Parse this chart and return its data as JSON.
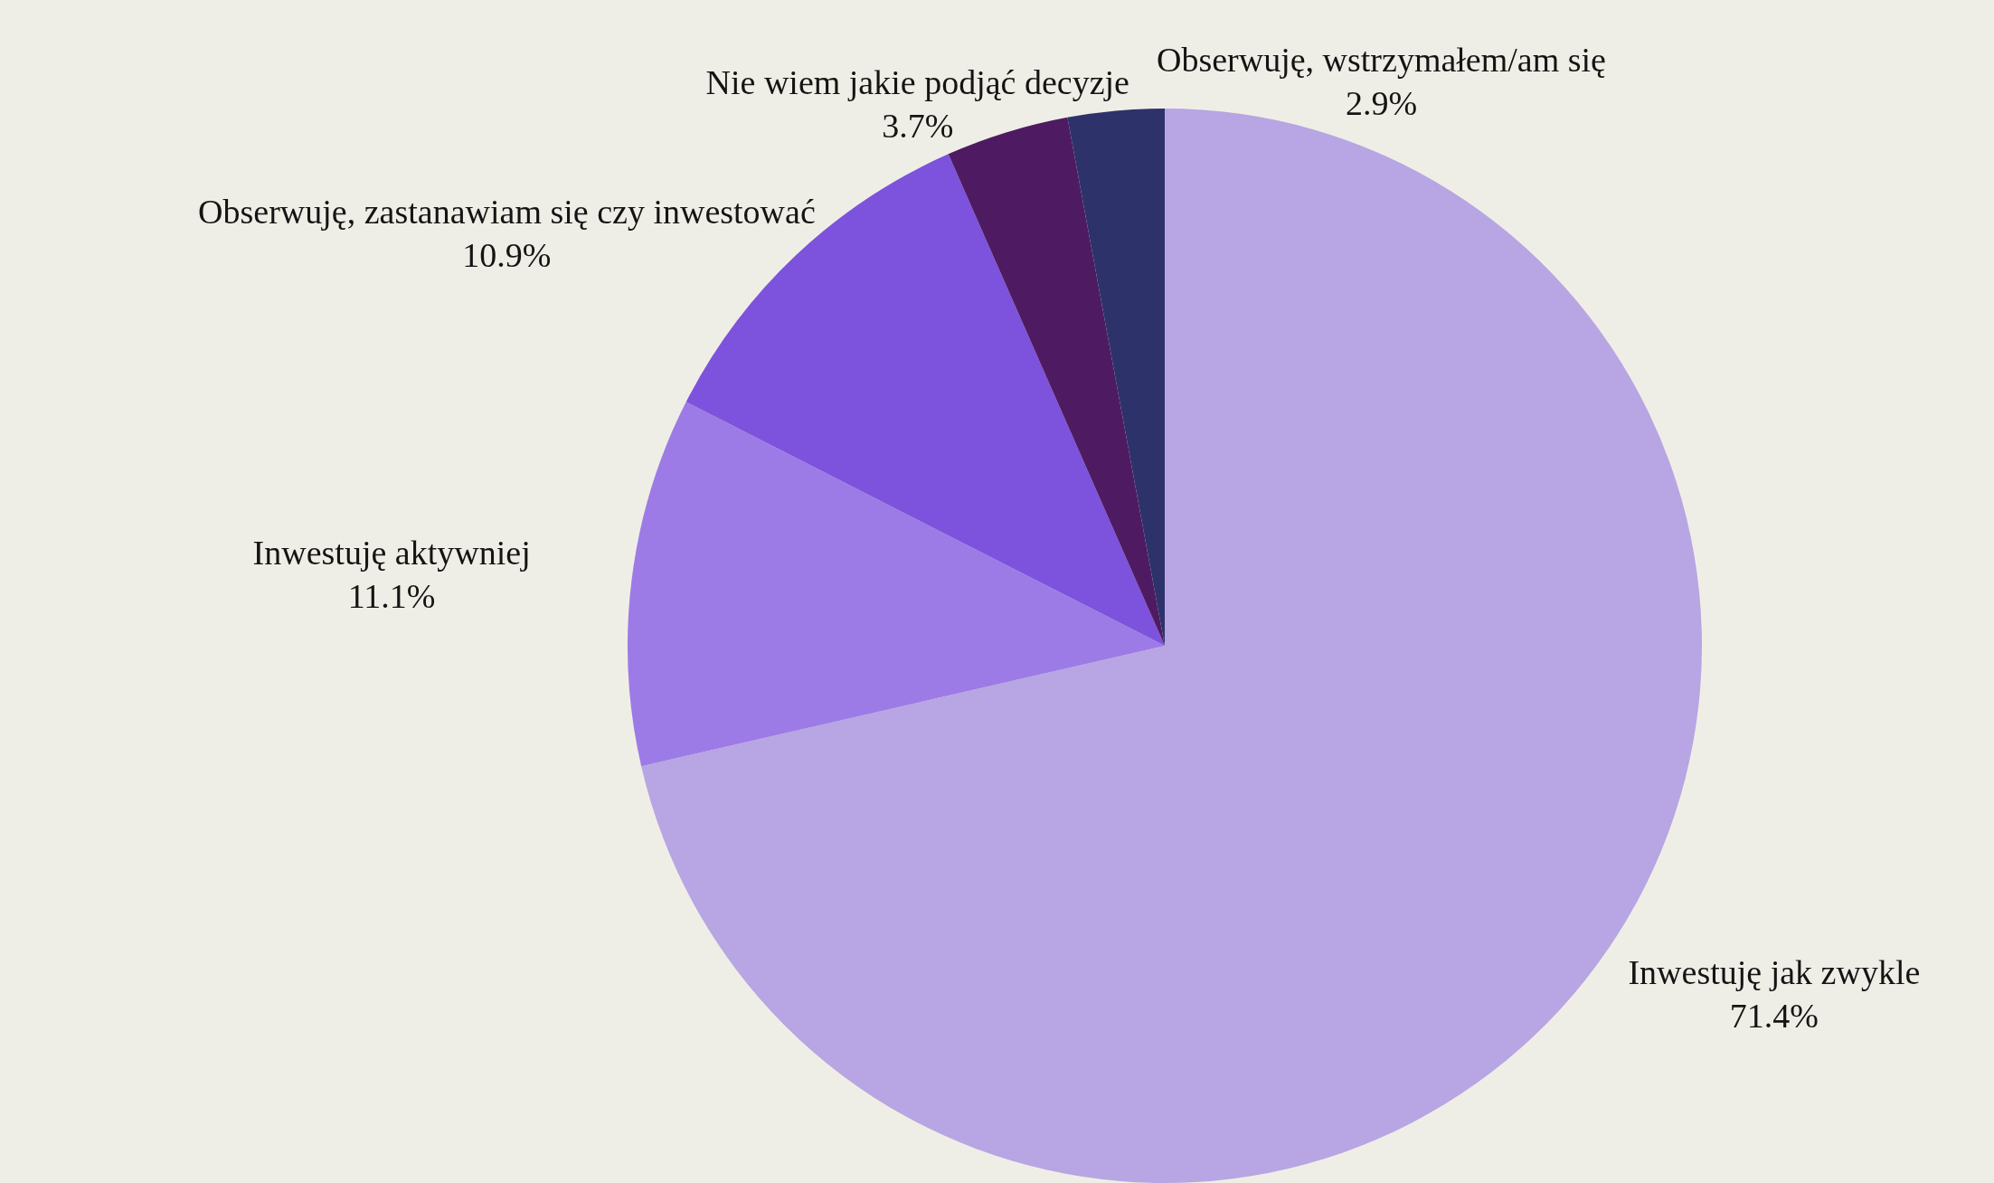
{
  "chart_data": {
    "type": "pie",
    "categories": [
      "Inwestuję jak zwykle",
      "Inwestuję aktywniej",
      "Obserwuję, zastanawiam się czy inwestować",
      "Nie wiem jakie podjąć decyzje",
      "Obserwuję, wstrzymałem/am się"
    ],
    "values": [
      71.4,
      11.1,
      10.9,
      3.7,
      2.9
    ],
    "value_labels": [
      "71.4%",
      "11.1%",
      "10.9%",
      "3.7%",
      "2.9%"
    ],
    "colors": [
      "#b8a5e3",
      "#9d7be6",
      "#7d52dc",
      "#4e1b62",
      "#2e326a"
    ],
    "legend": false
  }
}
